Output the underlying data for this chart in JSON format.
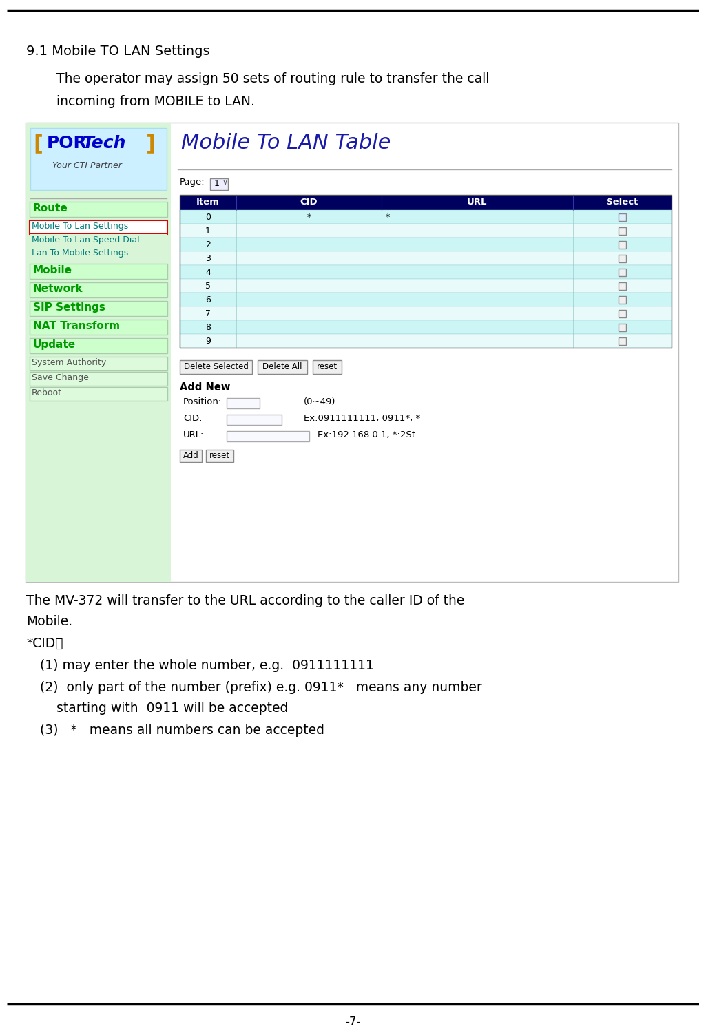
{
  "title_line": "-7-",
  "section_heading": "9.1 Mobile TO LAN Settings",
  "para1_line1": "The operator may assign 50 sets of routing rule to transfer the call",
  "para1_line2": "incoming from MOBILE to LAN.",
  "web_title": "Mobile To LAN Table",
  "table_headers": [
    "Item",
    "CID",
    "URL",
    "Select"
  ],
  "table_rows": [
    [
      "0",
      "*",
      "*"
    ],
    [
      "1",
      "",
      ""
    ],
    [
      "2",
      "",
      ""
    ],
    [
      "3",
      "",
      ""
    ],
    [
      "4",
      "",
      ""
    ],
    [
      "5",
      "",
      ""
    ],
    [
      "6",
      "",
      ""
    ],
    [
      "7",
      "",
      ""
    ],
    [
      "8",
      "",
      ""
    ],
    [
      "9",
      "",
      ""
    ]
  ],
  "add_new": "Add New",
  "position_label": "Position:",
  "position_hint": "(0~49)",
  "cid_label": "CID:",
  "cid_hint": "Ex:0911111111, 0911*, *",
  "url_label": "URL:",
  "url_hint": "Ex:192.168.0.1, *:2St",
  "btn_delete_selected": "Delete Selected",
  "btn_delete_all": "Delete All",
  "btn_reset": "reset",
  "btn_add": "Add",
  "btn_reset2": "reset",
  "para2_line1": "The MV-372 will transfer to the URL according to the caller ID of the",
  "para2_line2": "Mobile.",
  "para3": "*CID：",
  "item1": "(1) may enter the whole number, e.g.  0911111111",
  "item2_line1": "(2)  only part of the number (prefix) e.g. 0911*   means any number",
  "item2_line2": "     starting with  0911 will be accepted",
  "item3": "(3)   *   means all numbers can be accepted",
  "bg_color": "#ffffff",
  "header_bg": "#00005e",
  "header_fg": "#ffffff",
  "row_even_bg": "#ccf5f5",
  "row_odd_bg": "#e8fafa",
  "sidebar_bg": "#d8f5d8",
  "logo_bg": "#ccf0ff",
  "nav_green_bg": "#ccffcc",
  "nav_plain_bg": "#ddfadd",
  "web_title_color": "#1a1aaa",
  "green_bold": "#009900",
  "teal_color": "#007b7b",
  "red_border": "#dd0000"
}
